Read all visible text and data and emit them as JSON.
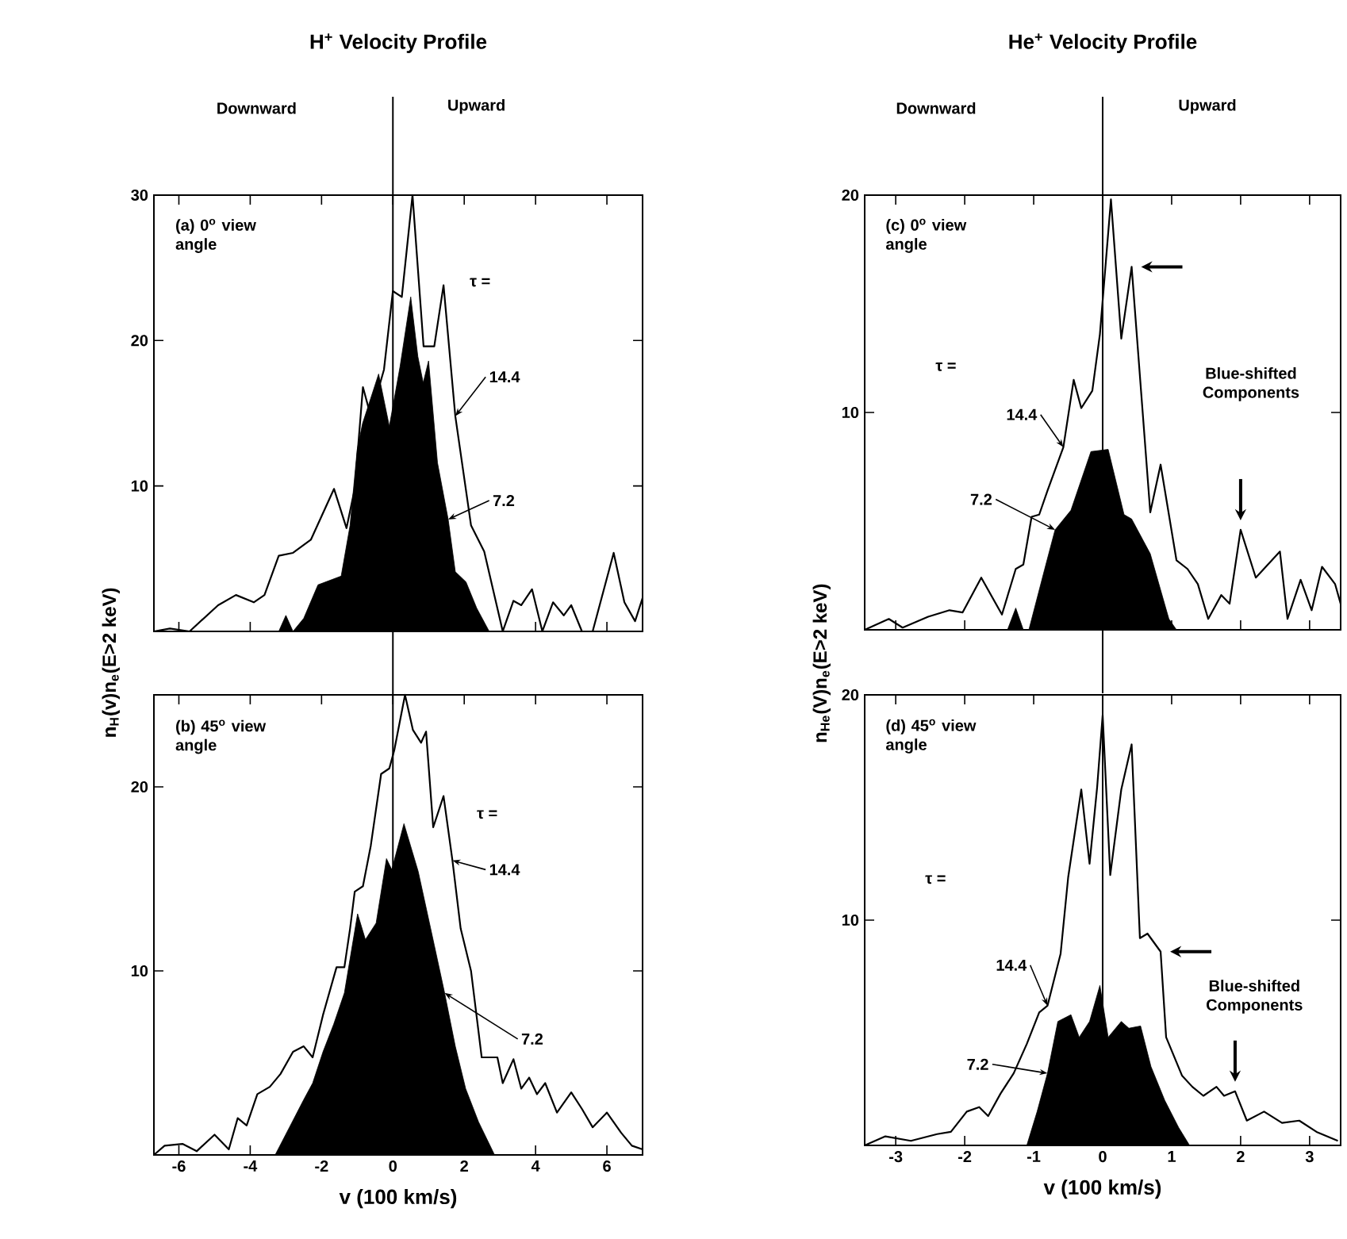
{
  "chart_data": [
    {
      "type": "line",
      "title": "H$^{+}$ Velocity Profile",
      "xlim": [
        -6.7,
        7
      ],
      "ylim": [
        0,
        30
      ],
      "xticks": [
        -6,
        -4,
        -2,
        0,
        2,
        4,
        6
      ],
      "yticks": [
        10,
        20,
        30
      ],
      "tick_labels": "y",
      "annotations": [
        "(a) 0$^{o}$ view angle",
        "τ =",
        "Downward",
        "Upward"
      ],
      "ref_lines": [
        {
          "axis": "x",
          "value": 0
        }
      ],
      "series": [
        {
          "name": "14.4",
          "color": "#000000",
          "x": [
            -6.7,
            -6.25,
            -5.7,
            -4.9,
            -4.4,
            -3.9,
            -3.6,
            -3.2,
            -2.8,
            -2.3,
            -1.65,
            -1.3,
            -1.07,
            -0.84,
            -0.62,
            -0.25,
            0.0,
            0.25,
            0.55,
            0.86,
            1.16,
            1.42,
            1.75,
            2.19,
            2.56,
            3.08,
            3.38,
            3.6,
            3.9,
            4.19,
            4.49,
            4.79,
            5.0,
            5.3,
            5.6,
            6.19,
            6.49,
            6.79,
            7.0
          ],
          "values": [
            0,
            0.2,
            0,
            1.8,
            2.5,
            2.0,
            2.5,
            5.2,
            5.4,
            6.3,
            9.8,
            7.1,
            9.8,
            16.8,
            14.8,
            18.0,
            23.4,
            23.0,
            30,
            19.6,
            19.6,
            23.8,
            14.8,
            7.3,
            5.5,
            0,
            2.1,
            1.8,
            2.9,
            0,
            2.0,
            1.1,
            1.8,
            0,
            0,
            5.4,
            2.0,
            0.7,
            2.3
          ]
        },
        {
          "name": "7.2",
          "type": "area",
          "color": "#000000",
          "x": [
            -3.2,
            -3.0,
            -2.8,
            -2.5,
            -2.1,
            -1.45,
            -1.2,
            -1.0,
            -0.85,
            -0.4,
            -0.1,
            0.2,
            0.5,
            0.7,
            0.85,
            1.0,
            1.25,
            1.55,
            1.75,
            2.05,
            2.35,
            2.7
          ],
          "values": [
            0,
            1.1,
            0,
            0.9,
            3.2,
            3.8,
            7.3,
            12.5,
            14.3,
            17.7,
            14.1,
            18.2,
            23.0,
            18.9,
            17.1,
            18.6,
            11.6,
            7.7,
            4.1,
            3.4,
            1.6,
            0
          ]
        }
      ]
    },
    {
      "type": "line",
      "xlabel": "v (100 km/s)",
      "ylabel": "n$_{H}$(v)n$_{e}$(E>2 keV)",
      "xlim": [
        -6.7,
        7
      ],
      "ylim": [
        0,
        25
      ],
      "xticks": [
        -6,
        -4,
        -2,
        0,
        2,
        4,
        6
      ],
      "yticks": [
        10,
        20
      ],
      "annotations": [
        "(b) 45$^{o}$ view angle",
        "τ ="
      ],
      "ref_lines": [
        {
          "axis": "x",
          "value": 0
        }
      ],
      "series": [
        {
          "name": "14.4",
          "color": "#000000",
          "x": [
            -6.7,
            -6.4,
            -5.9,
            -5.5,
            -5.0,
            -4.6,
            -4.35,
            -4.1,
            -3.8,
            -3.45,
            -3.15,
            -2.8,
            -2.5,
            -2.25,
            -1.96,
            -1.58,
            -1.36,
            -1.2,
            -1.07,
            -0.84,
            -0.62,
            -0.33,
            -0.1,
            0.04,
            0.34,
            0.56,
            0.79,
            0.93,
            1.13,
            1.42,
            1.67,
            1.9,
            2.19,
            2.49,
            2.93,
            3.08,
            3.38,
            3.6,
            3.82,
            4.04,
            4.27,
            4.6,
            5.0,
            5.3,
            5.6,
            6.0,
            6.4,
            6.7,
            7.0
          ],
          "values": [
            0,
            0.5,
            0.6,
            0.2,
            1.1,
            0.3,
            2.0,
            1.6,
            3.3,
            3.7,
            4.4,
            5.6,
            5.9,
            5.3,
            7.6,
            10.2,
            10.2,
            12.3,
            14.3,
            14.6,
            16.8,
            20.7,
            21.0,
            22.0,
            25.0,
            23.1,
            22.4,
            23.0,
            17.8,
            19.5,
            16.0,
            12.3,
            10.0,
            5.3,
            5.3,
            3.9,
            5.2,
            3.6,
            4.2,
            3.3,
            3.9,
            2.3,
            3.4,
            2.5,
            1.5,
            2.3,
            1.2,
            0.5,
            0.3
          ]
        },
        {
          "name": "7.2",
          "type": "area",
          "color": "#000000",
          "x": [
            -3.3,
            -2.9,
            -2.5,
            -2.25,
            -1.96,
            -1.66,
            -1.36,
            -0.99,
            -0.77,
            -0.47,
            -0.18,
            -0.03,
            0.31,
            0.71,
            1.16,
            1.45,
            1.75,
            2.04,
            2.4,
            2.85
          ],
          "values": [
            0,
            1.5,
            3.0,
            3.9,
            5.6,
            7.1,
            8.8,
            13.1,
            11.7,
            12.6,
            16.1,
            15.5,
            18.0,
            15.4,
            11.4,
            8.8,
            5.9,
            3.6,
            1.8,
            0
          ]
        }
      ]
    },
    {
      "type": "line",
      "title": "He$^{+}$ Velocity Profile",
      "xlim": [
        -3.45,
        3.45
      ],
      "ylim": [
        0,
        20
      ],
      "xticks": [
        -3,
        -2,
        -1,
        0,
        1,
        2,
        3
      ],
      "yticks": [
        10,
        20
      ],
      "tick_labels": "y",
      "annotations": [
        "(c) 0$^{o}$ view angle",
        "τ =",
        "Blue-shifted Components",
        "Downward",
        "Upward"
      ],
      "ref_lines": [
        {
          "axis": "x",
          "value": 0
        }
      ],
      "series": [
        {
          "name": "14.4",
          "color": "#000000",
          "x": [
            -3.45,
            -3.1,
            -2.9,
            -2.53,
            -2.22,
            -2.03,
            -1.76,
            -1.46,
            -1.26,
            -1.15,
            -1.03,
            -0.92,
            -0.8,
            -0.57,
            -0.42,
            -0.31,
            -0.15,
            -0.04,
            0.12,
            0.27,
            0.42,
            0.69,
            0.84,
            1.07,
            1.23,
            1.38,
            1.53,
            1.72,
            1.84,
            2.0,
            2.22,
            2.57,
            2.68,
            2.87,
            3.03,
            3.18,
            3.37,
            3.45
          ],
          "values": [
            0,
            0.5,
            0.1,
            0.6,
            0.9,
            0.8,
            2.4,
            0.7,
            2.8,
            3.0,
            5.2,
            5.3,
            6.4,
            8.4,
            11.5,
            10.2,
            11.0,
            13.6,
            19.8,
            13.4,
            16.7,
            5.4,
            7.6,
            3.2,
            2.8,
            2.1,
            0.5,
            1.6,
            1.2,
            4.6,
            2.4,
            3.6,
            0.5,
            2.3,
            0.9,
            2.9,
            2.1,
            1.2
          ]
        },
        {
          "name": "7.2",
          "type": "area",
          "color": "#000000",
          "x": [
            -1.38,
            -1.26,
            -1.15,
            -1.07,
            -0.84,
            -0.69,
            -0.46,
            -0.17,
            0.08,
            0.31,
            0.42,
            0.69,
            0.96,
            1.07
          ],
          "values": [
            0,
            1.0,
            0,
            0,
            2.8,
            4.6,
            5.5,
            8.2,
            8.3,
            5.3,
            5.1,
            3.5,
            0.5,
            0
          ]
        }
      ]
    },
    {
      "type": "line",
      "xlabel": "v (100 km/s)",
      "ylabel": "n$_{He}$(V)n$_{e}$(E>2 keV)",
      "xlim": [
        -3.45,
        3.45
      ],
      "ylim": [
        0,
        20
      ],
      "xticks": [
        -3,
        -2,
        -1,
        0,
        1,
        2,
        3
      ],
      "yticks": [
        10,
        20
      ],
      "annotations": [
        "(d) 45$^{o}$ view angle",
        "τ =",
        "Blue-shifted Components"
      ],
      "ref_lines": [
        {
          "axis": "x",
          "value": 0
        }
      ],
      "series": [
        {
          "name": "14.4",
          "color": "#000000",
          "x": [
            -3.45,
            -3.15,
            -2.78,
            -2.4,
            -2.2,
            -1.97,
            -1.79,
            -1.66,
            -1.48,
            -1.29,
            -1.1,
            -0.92,
            -0.8,
            -0.61,
            -0.5,
            -0.31,
            -0.19,
            -0.08,
            0,
            0.11,
            0.27,
            0.42,
            0.54,
            0.65,
            0.84,
            0.92,
            1.15,
            1.3,
            1.46,
            1.65,
            1.76,
            1.92,
            2.09,
            2.34,
            2.6,
            2.85,
            3.1,
            3.41
          ],
          "values": [
            0,
            0.4,
            0.2,
            0.5,
            0.6,
            1.5,
            1.7,
            1.3,
            2.3,
            3.2,
            4.5,
            5.9,
            6.2,
            8.5,
            11.9,
            15.8,
            12.5,
            15.9,
            19.1,
            12.0,
            15.8,
            17.8,
            9.2,
            9.4,
            8.6,
            4.8,
            3.1,
            2.6,
            2.2,
            2.6,
            2.2,
            2.4,
            1.1,
            1.5,
            1.0,
            1.1,
            0.6,
            0.2
          ]
        },
        {
          "name": "7.2",
          "type": "area",
          "color": "#000000",
          "x": [
            -1.1,
            -0.95,
            -0.8,
            -0.65,
            -0.46,
            -0.34,
            -0.19,
            -0.04,
            0.08,
            0.27,
            0.38,
            0.55,
            0.7,
            0.9,
            1.1,
            1.26
          ],
          "values": [
            0,
            1.5,
            3.2,
            5.5,
            5.8,
            4.8,
            5.5,
            7.1,
            4.8,
            5.5,
            5.2,
            5.3,
            3.5,
            2.0,
            0.8,
            0
          ]
        }
      ]
    }
  ]
}
